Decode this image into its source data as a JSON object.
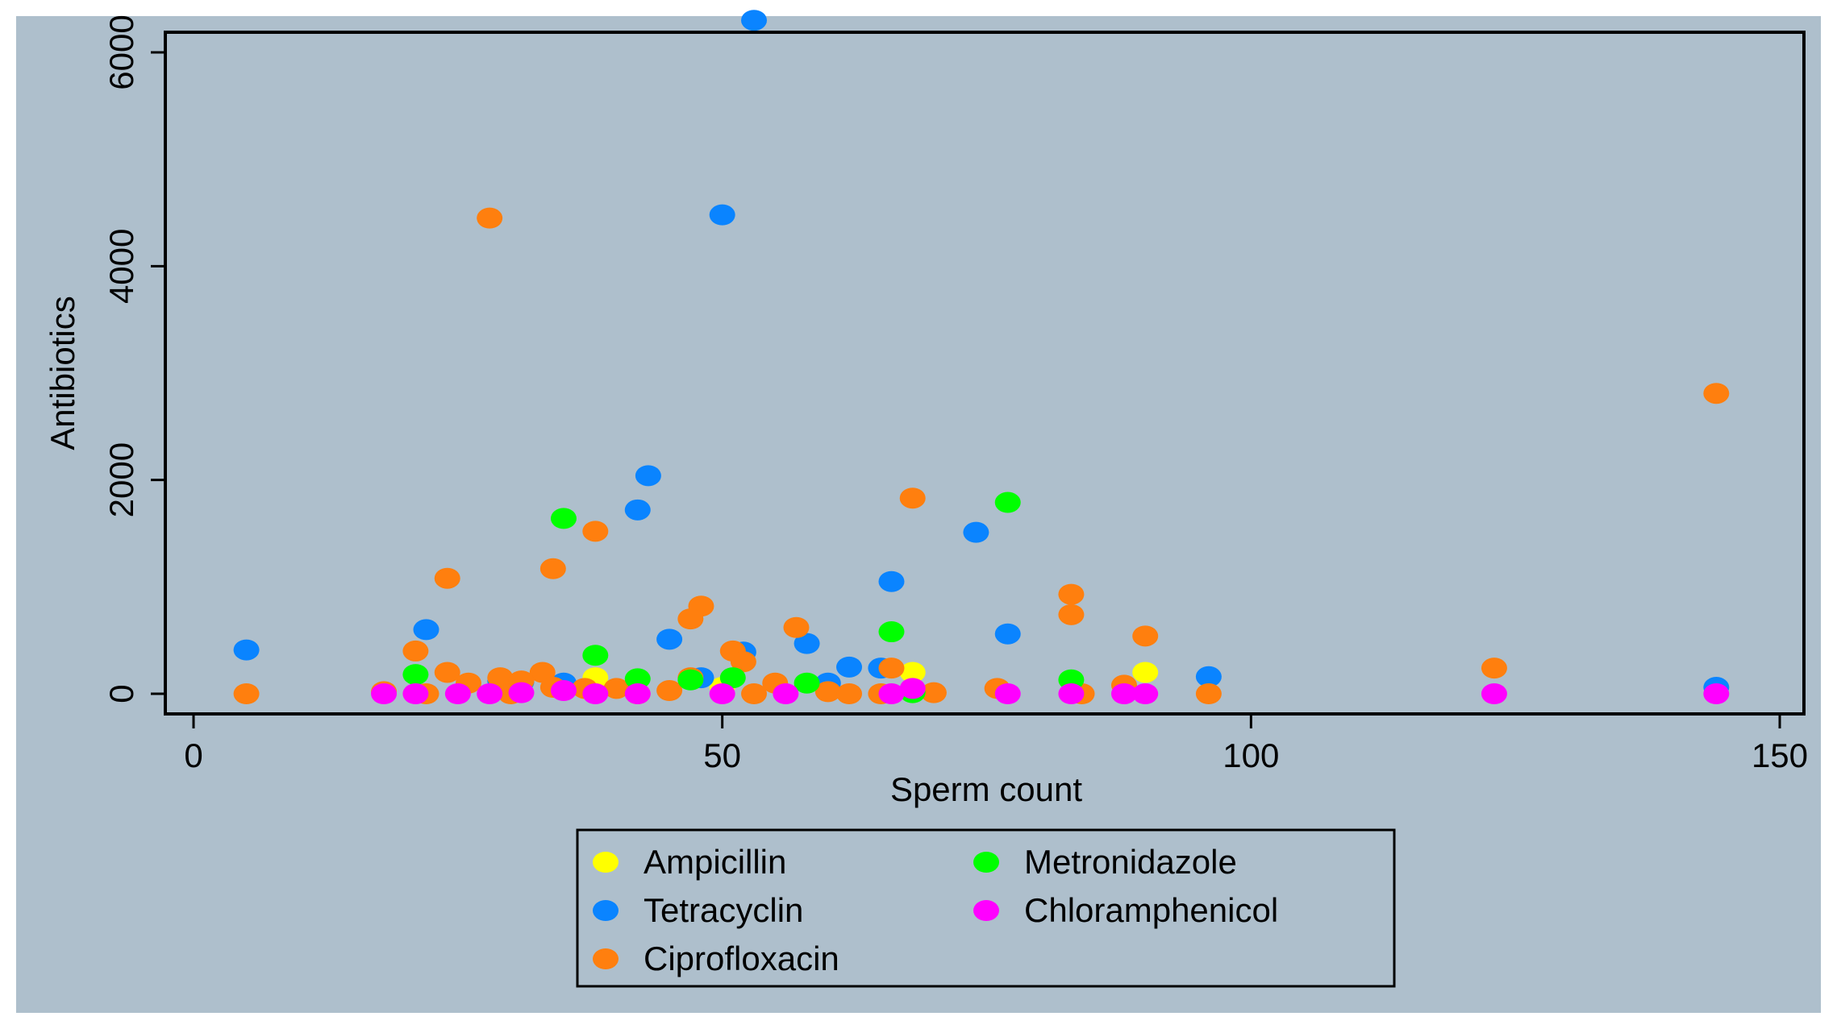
{
  "chart_data": {
    "type": "scatter",
    "title": "",
    "xlabel": "Sperm count",
    "ylabel": "Antibiotics",
    "xlim": [
      0,
      150
    ],
    "ylim": [
      0,
      6000
    ],
    "x_ticks": [
      "0",
      "50",
      "100",
      "150"
    ],
    "y_ticks": [
      "0",
      "2000",
      "4000",
      "6000"
    ],
    "grid": false,
    "legend_position": "bottom",
    "colors": {
      "background": "#aebfcc",
      "plot_background": "#aebfcc",
      "Ampicillin": "#ffff00",
      "Tetracyclin": "#0a84ff",
      "Ciprofloxacin": "#ff7f0e",
      "Metronidazole": "#00ff00",
      "Chloramphenicol": "#ff00ff"
    },
    "series": [
      {
        "name": "Ampicillin",
        "x": [
          38,
          68,
          90,
          35,
          50
        ],
        "y": [
          150,
          200,
          200,
          60,
          60
        ]
      },
      {
        "name": "Tetracyclin",
        "x": [
          53,
          50,
          43,
          42,
          74,
          66,
          22,
          5,
          52,
          58,
          45,
          65,
          62,
          77,
          96,
          144,
          48,
          60,
          35,
          29,
          31
        ],
        "y": [
          6300,
          4480,
          2040,
          1720,
          1510,
          1050,
          600,
          410,
          390,
          470,
          510,
          240,
          250,
          560,
          160,
          60,
          150,
          100,
          100,
          120,
          110
        ]
      },
      {
        "name": "Ciprofloxacin",
        "x": [
          28,
          144,
          68,
          38,
          34,
          24,
          48,
          47,
          83,
          83,
          57,
          51,
          90,
          21,
          24,
          52,
          123,
          66,
          33,
          29,
          47,
          31,
          26,
          55,
          88,
          34,
          37,
          40,
          45,
          60,
          70,
          18,
          76,
          5,
          96,
          84,
          30,
          42,
          62,
          65,
          22,
          53
        ],
        "y": [
          4450,
          2810,
          1830,
          1520,
          1170,
          1080,
          820,
          700,
          930,
          740,
          620,
          400,
          540,
          400,
          200,
          300,
          240,
          240,
          200,
          150,
          150,
          120,
          100,
          100,
          80,
          60,
          50,
          50,
          30,
          20,
          10,
          20,
          50,
          0,
          0,
          0,
          0,
          0,
          0,
          0,
          0,
          0
        ]
      },
      {
        "name": "Metronidazole",
        "x": [
          35,
          77,
          66,
          38,
          21,
          42,
          51,
          47,
          58,
          83,
          68
        ],
        "y": [
          1640,
          1790,
          580,
          360,
          180,
          140,
          150,
          130,
          100,
          130,
          10
        ]
      },
      {
        "name": "Chloramphenicol",
        "x": [
          18,
          21,
          25,
          28,
          31,
          35,
          38,
          42,
          50,
          56,
          66,
          68,
          77,
          83,
          88,
          90,
          123,
          144
        ],
        "y": [
          0,
          0,
          0,
          0,
          10,
          30,
          0,
          0,
          0,
          0,
          0,
          50,
          0,
          0,
          0,
          0,
          0,
          0
        ]
      }
    ]
  }
}
